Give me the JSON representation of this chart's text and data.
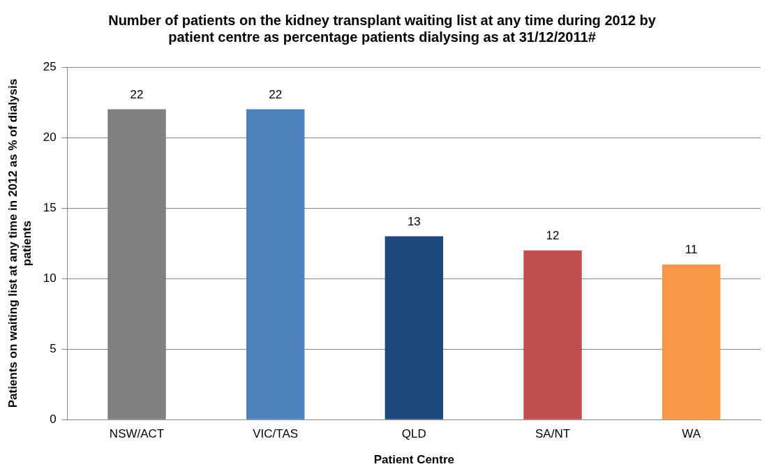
{
  "chart_data": {
    "type": "bar",
    "title": "Number of patients on the kidney transplant waiting list at any time during 2012 by patient centre as percentage patients dialysing as at 31/12/2011#",
    "xlabel": "Patient Centre",
    "ylabel": "Patients on waiting list at any time in 2012 as % of dialysis patients",
    "categories": [
      "NSW/ACT",
      "VIC/TAS",
      "QLD",
      "SA/NT",
      "WA"
    ],
    "values": [
      22,
      22,
      13,
      12,
      11
    ],
    "colors": [
      "#7f7f7f",
      "#4f81bd",
      "#1f497d",
      "#c0504d",
      "#f79646"
    ],
    "ylim": [
      0,
      25
    ],
    "yticks": [
      0,
      5,
      10,
      15,
      20,
      25
    ],
    "grid": "y",
    "data_labels": true,
    "legend": false
  }
}
